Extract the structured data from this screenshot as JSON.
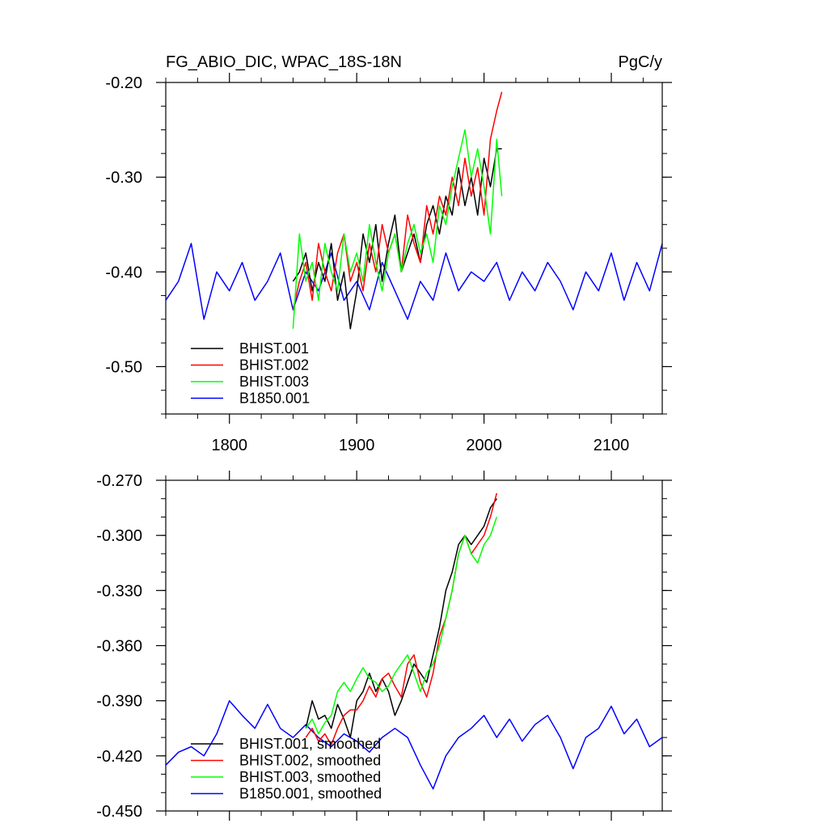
{
  "chart_data": [
    {
      "type": "line",
      "title": "FG_ABIO_DIC, WPAC_18S-18N",
      "units": "PgC/y",
      "xlim": [
        1750,
        2140
      ],
      "ylim": [
        -0.55,
        -0.2
      ],
      "x_ticks": [
        1800,
        1900,
        2000,
        2100
      ],
      "x_tick_labels": [
        "1800",
        "1900",
        "2000",
        "2100"
      ],
      "y_ticks": [
        -0.5,
        -0.4,
        -0.3,
        -0.2
      ],
      "y_tick_labels": [
        "-0.50",
        "-0.40",
        "-0.30",
        "-0.20"
      ],
      "legend_position": "bottom-left",
      "series": [
        {
          "name": "BHIST.001",
          "color": "#000000",
          "x": [
            1850,
            1855,
            1860,
            1865,
            1870,
            1875,
            1880,
            1885,
            1890,
            1895,
            1900,
            1905,
            1910,
            1915,
            1920,
            1925,
            1930,
            1935,
            1940,
            1945,
            1950,
            1955,
            1960,
            1965,
            1970,
            1975,
            1980,
            1985,
            1990,
            1995,
            2000,
            2005,
            2010,
            2014
          ],
          "values": [
            -0.41,
            -0.4,
            -0.38,
            -0.42,
            -0.39,
            -0.41,
            -0.37,
            -0.43,
            -0.4,
            -0.46,
            -0.42,
            -0.36,
            -0.39,
            -0.35,
            -0.41,
            -0.37,
            -0.34,
            -0.4,
            -0.38,
            -0.36,
            -0.39,
            -0.35,
            -0.33,
            -0.36,
            -0.32,
            -0.34,
            -0.29,
            -0.33,
            -0.3,
            -0.34,
            -0.28,
            -0.31,
            -0.27,
            -0.27
          ]
        },
        {
          "name": "BHIST.002",
          "color": "#ff0000",
          "x": [
            1850,
            1855,
            1860,
            1865,
            1870,
            1875,
            1880,
            1885,
            1890,
            1895,
            1900,
            1905,
            1910,
            1915,
            1920,
            1925,
            1930,
            1935,
            1940,
            1945,
            1950,
            1955,
            1960,
            1965,
            1970,
            1975,
            1980,
            1985,
            1990,
            1995,
            2000,
            2005,
            2010,
            2014
          ],
          "values": [
            -0.44,
            -0.41,
            -0.39,
            -0.43,
            -0.37,
            -0.4,
            -0.42,
            -0.38,
            -0.36,
            -0.41,
            -0.39,
            -0.42,
            -0.37,
            -0.4,
            -0.35,
            -0.38,
            -0.36,
            -0.4,
            -0.34,
            -0.37,
            -0.39,
            -0.33,
            -0.36,
            -0.32,
            -0.34,
            -0.3,
            -0.33,
            -0.28,
            -0.32,
            -0.29,
            -0.34,
            -0.26,
            -0.23,
            -0.21
          ]
        },
        {
          "name": "BHIST.003",
          "color": "#00ff00",
          "x": [
            1850,
            1855,
            1860,
            1865,
            1870,
            1875,
            1880,
            1885,
            1890,
            1895,
            1900,
            1905,
            1910,
            1915,
            1920,
            1925,
            1930,
            1935,
            1940,
            1945,
            1950,
            1955,
            1960,
            1965,
            1970,
            1975,
            1980,
            1985,
            1990,
            1995,
            2000,
            2005,
            2010,
            2014
          ],
          "values": [
            -0.46,
            -0.36,
            -0.41,
            -0.39,
            -0.43,
            -0.37,
            -0.4,
            -0.42,
            -0.36,
            -0.4,
            -0.38,
            -0.41,
            -0.35,
            -0.39,
            -0.42,
            -0.38,
            -0.36,
            -0.4,
            -0.37,
            -0.35,
            -0.38,
            -0.36,
            -0.39,
            -0.33,
            -0.35,
            -0.31,
            -0.28,
            -0.25,
            -0.3,
            -0.27,
            -0.31,
            -0.36,
            -0.26,
            -0.32
          ]
        },
        {
          "name": "B1850.001",
          "color": "#0000ff",
          "x": [
            1750,
            1760,
            1770,
            1780,
            1790,
            1800,
            1810,
            1820,
            1830,
            1840,
            1850,
            1860,
            1870,
            1880,
            1890,
            1900,
            1910,
            1920,
            1930,
            1940,
            1950,
            1960,
            1970,
            1980,
            1990,
            2000,
            2010,
            2020,
            2030,
            2040,
            2050,
            2060,
            2070,
            2080,
            2090,
            2100,
            2110,
            2120,
            2130,
            2140
          ],
          "values": [
            -0.43,
            -0.41,
            -0.37,
            -0.45,
            -0.4,
            -0.42,
            -0.39,
            -0.43,
            -0.41,
            -0.38,
            -0.44,
            -0.4,
            -0.42,
            -0.38,
            -0.43,
            -0.41,
            -0.44,
            -0.39,
            -0.42,
            -0.45,
            -0.41,
            -0.43,
            -0.38,
            -0.42,
            -0.4,
            -0.41,
            -0.39,
            -0.43,
            -0.4,
            -0.42,
            -0.39,
            -0.41,
            -0.44,
            -0.4,
            -0.42,
            -0.38,
            -0.43,
            -0.39,
            -0.42,
            -0.37
          ]
        }
      ]
    },
    {
      "type": "line",
      "xlim": [
        1750,
        2140
      ],
      "ylim": [
        -0.45,
        -0.27
      ],
      "x_ticks": [
        1800,
        1900,
        2000,
        2100
      ],
      "y_ticks": [
        -0.45,
        -0.42,
        -0.39,
        -0.36,
        -0.33,
        -0.3,
        -0.27
      ],
      "y_tick_labels": [
        "-0.450",
        "-0.420",
        "-0.390",
        "-0.360",
        "-0.330",
        "-0.300",
        "-0.270"
      ],
      "legend_position": "bottom-left",
      "series": [
        {
          "name": "BHIST.001, smoothed",
          "color": "#000000",
          "x": [
            1860,
            1865,
            1870,
            1875,
            1880,
            1885,
            1890,
            1895,
            1900,
            1905,
            1910,
            1915,
            1920,
            1925,
            1930,
            1935,
            1940,
            1945,
            1950,
            1955,
            1960,
            1965,
            1970,
            1975,
            1980,
            1985,
            1990,
            1995,
            2000,
            2005,
            2010
          ],
          "values": [
            -0.405,
            -0.39,
            -0.4,
            -0.398,
            -0.405,
            -0.392,
            -0.4,
            -0.41,
            -0.39,
            -0.385,
            -0.375,
            -0.385,
            -0.378,
            -0.385,
            -0.398,
            -0.39,
            -0.38,
            -0.37,
            -0.375,
            -0.38,
            -0.365,
            -0.35,
            -0.33,
            -0.32,
            -0.305,
            -0.3,
            -0.305,
            -0.3,
            -0.295,
            -0.285,
            -0.28
          ]
        },
        {
          "name": "BHIST.002, smoothed",
          "color": "#ff0000",
          "x": [
            1860,
            1865,
            1870,
            1875,
            1880,
            1885,
            1890,
            1895,
            1900,
            1905,
            1910,
            1915,
            1920,
            1925,
            1930,
            1935,
            1940,
            1945,
            1950,
            1955,
            1960,
            1965,
            1970,
            1975,
            1980,
            1985,
            1990,
            1995,
            2000,
            2005,
            2010
          ],
          "values": [
            -0.41,
            -0.405,
            -0.412,
            -0.408,
            -0.414,
            -0.405,
            -0.398,
            -0.395,
            -0.395,
            -0.39,
            -0.382,
            -0.388,
            -0.378,
            -0.375,
            -0.382,
            -0.388,
            -0.37,
            -0.365,
            -0.38,
            -0.388,
            -0.375,
            -0.355,
            -0.345,
            -0.33,
            -0.31,
            -0.3,
            -0.31,
            -0.305,
            -0.3,
            -0.29,
            -0.277
          ]
        },
        {
          "name": "BHIST.003, smoothed",
          "color": "#00ff00",
          "x": [
            1860,
            1865,
            1870,
            1875,
            1880,
            1885,
            1890,
            1895,
            1900,
            1905,
            1910,
            1915,
            1920,
            1925,
            1930,
            1935,
            1940,
            1945,
            1950,
            1955,
            1960,
            1965,
            1970,
            1975,
            1980,
            1985,
            1990,
            1995,
            2000,
            2005,
            2010
          ],
          "values": [
            -0.405,
            -0.4,
            -0.408,
            -0.402,
            -0.398,
            -0.385,
            -0.38,
            -0.385,
            -0.378,
            -0.372,
            -0.378,
            -0.38,
            -0.385,
            -0.382,
            -0.375,
            -0.37,
            -0.365,
            -0.375,
            -0.385,
            -0.375,
            -0.37,
            -0.36,
            -0.345,
            -0.33,
            -0.31,
            -0.3,
            -0.31,
            -0.315,
            -0.305,
            -0.3,
            -0.29
          ]
        },
        {
          "name": "B1850.001, smoothed",
          "color": "#0000ff",
          "x": [
            1750,
            1760,
            1770,
            1780,
            1790,
            1800,
            1810,
            1820,
            1830,
            1840,
            1850,
            1860,
            1870,
            1880,
            1890,
            1900,
            1910,
            1920,
            1930,
            1940,
            1950,
            1960,
            1970,
            1980,
            1990,
            2000,
            2010,
            2020,
            2030,
            2040,
            2050,
            2060,
            2070,
            2080,
            2090,
            2100,
            2110,
            2120,
            2130,
            2140
          ],
          "values": [
            -0.425,
            -0.418,
            -0.415,
            -0.42,
            -0.408,
            -0.39,
            -0.398,
            -0.405,
            -0.392,
            -0.405,
            -0.41,
            -0.403,
            -0.41,
            -0.415,
            -0.408,
            -0.412,
            -0.418,
            -0.41,
            -0.405,
            -0.41,
            -0.425,
            -0.438,
            -0.42,
            -0.41,
            -0.405,
            -0.398,
            -0.41,
            -0.4,
            -0.412,
            -0.403,
            -0.398,
            -0.41,
            -0.427,
            -0.41,
            -0.405,
            -0.393,
            -0.408,
            -0.4,
            -0.415,
            -0.41
          ]
        }
      ]
    }
  ]
}
